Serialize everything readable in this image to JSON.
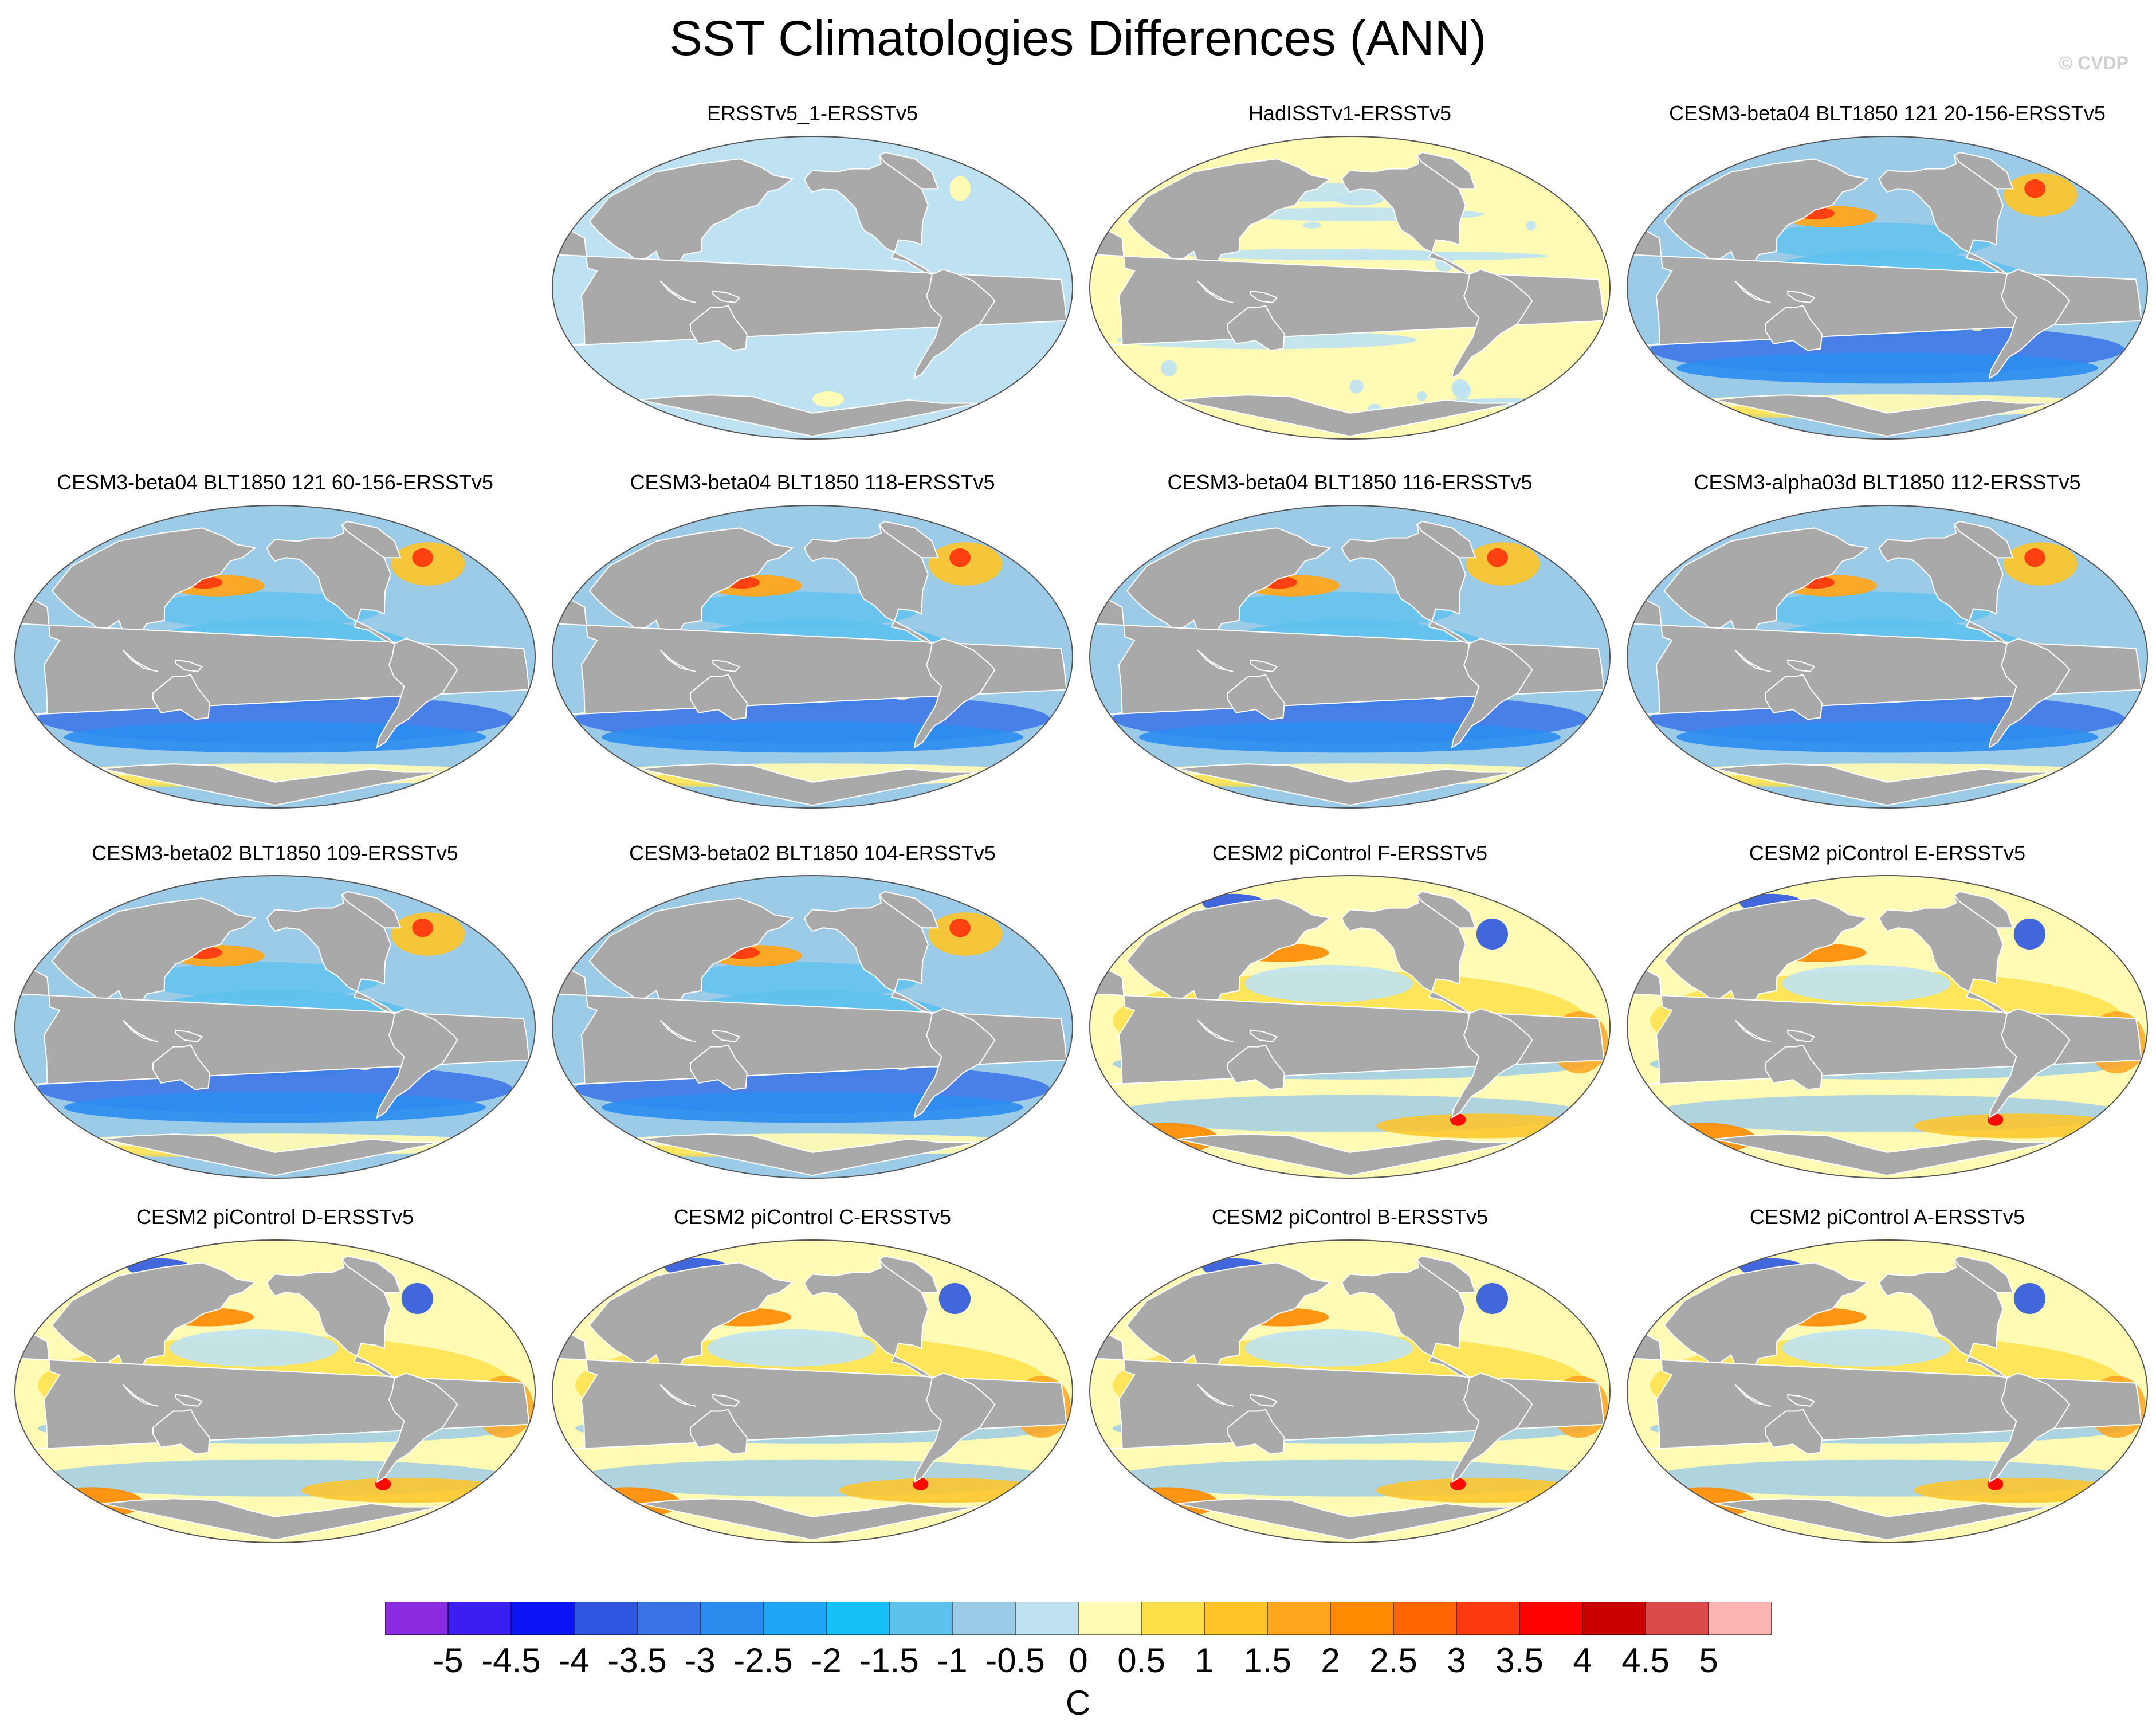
{
  "title": "SST Climatologies Differences (ANN)",
  "watermark": "© CVDP",
  "panels": [
    {
      "label": "ERSSTv5_1-ERSSTv5",
      "mode": "lightblue"
    },
    {
      "label": "HadISSTv1-ERSSTv5",
      "mode": "lightyellow"
    },
    {
      "label": "CESM3-beta04 BLT1850 121 20-156-ERSSTv5",
      "mode": "cold"
    },
    {
      "label": "CESM3-beta04 BLT1850 121 60-156-ERSSTv5",
      "mode": "cold"
    },
    {
      "label": "CESM3-beta04 BLT1850 118-ERSSTv5",
      "mode": "cold"
    },
    {
      "label": "CESM3-beta04 BLT1850 116-ERSSTv5",
      "mode": "cold"
    },
    {
      "label": "CESM3-alpha03d BLT1850 112-ERSSTv5",
      "mode": "cold"
    },
    {
      "label": "CESM3-beta02 BLT1850 109-ERSSTv5",
      "mode": "cold"
    },
    {
      "label": "CESM3-beta02 BLT1850 104-ERSSTv5",
      "mode": "cold"
    },
    {
      "label": "CESM2 piControl F-ERSSTv5",
      "mode": "warm"
    },
    {
      "label": "CESM2 piControl E-ERSSTv5",
      "mode": "warm"
    },
    {
      "label": "CESM2 piControl D-ERSSTv5",
      "mode": "warm"
    },
    {
      "label": "CESM2 piControl C-ERSSTv5",
      "mode": "warm"
    },
    {
      "label": "CESM2 piControl B-ERSSTv5",
      "mode": "warm"
    },
    {
      "label": "CESM2 piControl A-ERSSTv5",
      "mode": "warm"
    }
  ],
  "colorbar": {
    "colors": [
      "#8a2be2",
      "#3a1ff0",
      "#0a14f5",
      "#2d55e0",
      "#3a73e6",
      "#2b8cf0",
      "#1ea5f5",
      "#18c0f8",
      "#5ec2ee",
      "#9ccbe8",
      "#bfe2f2",
      "#fffab4",
      "#ffe04a",
      "#ffc427",
      "#ffa51c",
      "#ff8a00",
      "#ff6600",
      "#ff3a10",
      "#ff0000",
      "#c80000",
      "#dc4b4b",
      "#ffb4b4"
    ],
    "ticks": [
      "-5",
      "-4.5",
      "-4",
      "-3.5",
      "-3",
      "-2.5",
      "-2",
      "-1.5",
      "-1",
      "-0.5",
      "0",
      "0.5",
      "1",
      "1.5",
      "2",
      "2.5",
      "3",
      "3.5",
      "4",
      "4.5",
      "5"
    ],
    "unit": "C"
  }
}
